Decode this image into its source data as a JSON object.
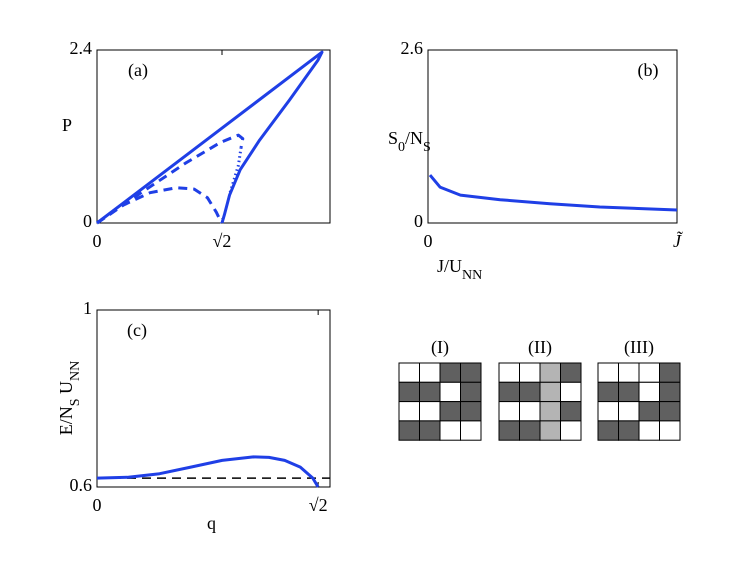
{
  "chart_data": [
    {
      "type": "line",
      "panel_label": "(a)",
      "ylabel": [
        "P"
      ],
      "ylabel_rotated": false,
      "xlabel": null,
      "xlim": [
        0,
        2.636
      ],
      "ylim": [
        0,
        2.4
      ],
      "xticks": [
        0,
        {
          "value": 1.41421,
          "label": "√2"
        }
      ],
      "yticks": [
        0,
        2.4
      ],
      "series": [
        {
          "color": "#1f3fe6",
          "style": "solid",
          "x": [
            0,
            2.545,
            2.5,
            2.18,
            1.84,
            1.62,
            1.5,
            1.44,
            1.414
          ],
          "values": [
            0,
            2.37,
            2.26,
            1.71,
            1.15,
            0.74,
            0.39,
            0.11,
            0
          ]
        },
        {
          "color": "#1f3fe6",
          "style": "dashed",
          "x": [
            0,
            0.5,
            1.0,
            1.4,
            1.6,
            1.65,
            1.63
          ],
          "values": [
            0,
            0.42,
            0.83,
            1.12,
            1.22,
            1.17,
            1.05
          ]
        },
        {
          "color": "#1f3fe6",
          "style": "dotted",
          "x": [
            1.63,
            1.6,
            1.55,
            1.5
          ],
          "values": [
            1.05,
            0.8,
            0.6,
            0.4
          ]
        },
        {
          "color": "#1f3fe6",
          "style": "dashed",
          "x": [
            0,
            0.3,
            0.6,
            0.9,
            1.1,
            1.25,
            1.35,
            1.41
          ],
          "values": [
            0,
            0.25,
            0.42,
            0.49,
            0.47,
            0.35,
            0.15,
            0
          ]
        }
      ]
    },
    {
      "type": "line",
      "panel_label": "(b)",
      "ylabel": [
        "S",
        "0",
        "/N",
        "S"
      ],
      "ylabel_rotated": false,
      "xlabel": [
        "J/U",
        "NN"
      ],
      "xlim": [
        0,
        1
      ],
      "ylim": [
        0,
        2.6
      ],
      "xticks": [
        0,
        {
          "value": 1,
          "label": "J̃"
        }
      ],
      "yticks": [
        0,
        2.6
      ],
      "series": [
        {
          "color": "#1f3fe6",
          "style": "solid",
          "x": [
            0.008,
            0.048,
            0.13,
            0.29,
            0.49,
            0.69,
            1
          ],
          "values": [
            0.72,
            0.54,
            0.42,
            0.35,
            0.29,
            0.24,
            0.195
          ]
        }
      ]
    },
    {
      "type": "line",
      "panel_label": "(c)",
      "ylabel": [
        "E/N",
        "S",
        " U",
        "NN"
      ],
      "ylabel_rotated": true,
      "xlabel": [
        "q"
      ],
      "xlim": [
        0,
        1.49
      ],
      "ylim": [
        0.6,
        1
      ],
      "xticks": [
        0,
        {
          "value": 1.41421,
          "label": "√2"
        }
      ],
      "yticks": [
        0.6,
        1
      ],
      "reference_lines": [
        {
          "value": 0.62,
          "style": "dashed",
          "color": "#000000"
        }
      ],
      "series": [
        {
          "color": "#1f3fe6",
          "style": "solid",
          "x": [
            0,
            0.2,
            0.4,
            0.6,
            0.8,
            1.0,
            1.1,
            1.2,
            1.3,
            1.38,
            1.414
          ],
          "values": [
            0.62,
            0.622,
            0.63,
            0.645,
            0.66,
            0.668,
            0.667,
            0.66,
            0.645,
            0.62,
            0.6
          ]
        }
      ]
    }
  ],
  "lattices": {
    "labels": [
      "(I)",
      "(II)",
      "(III)"
    ]
  }
}
